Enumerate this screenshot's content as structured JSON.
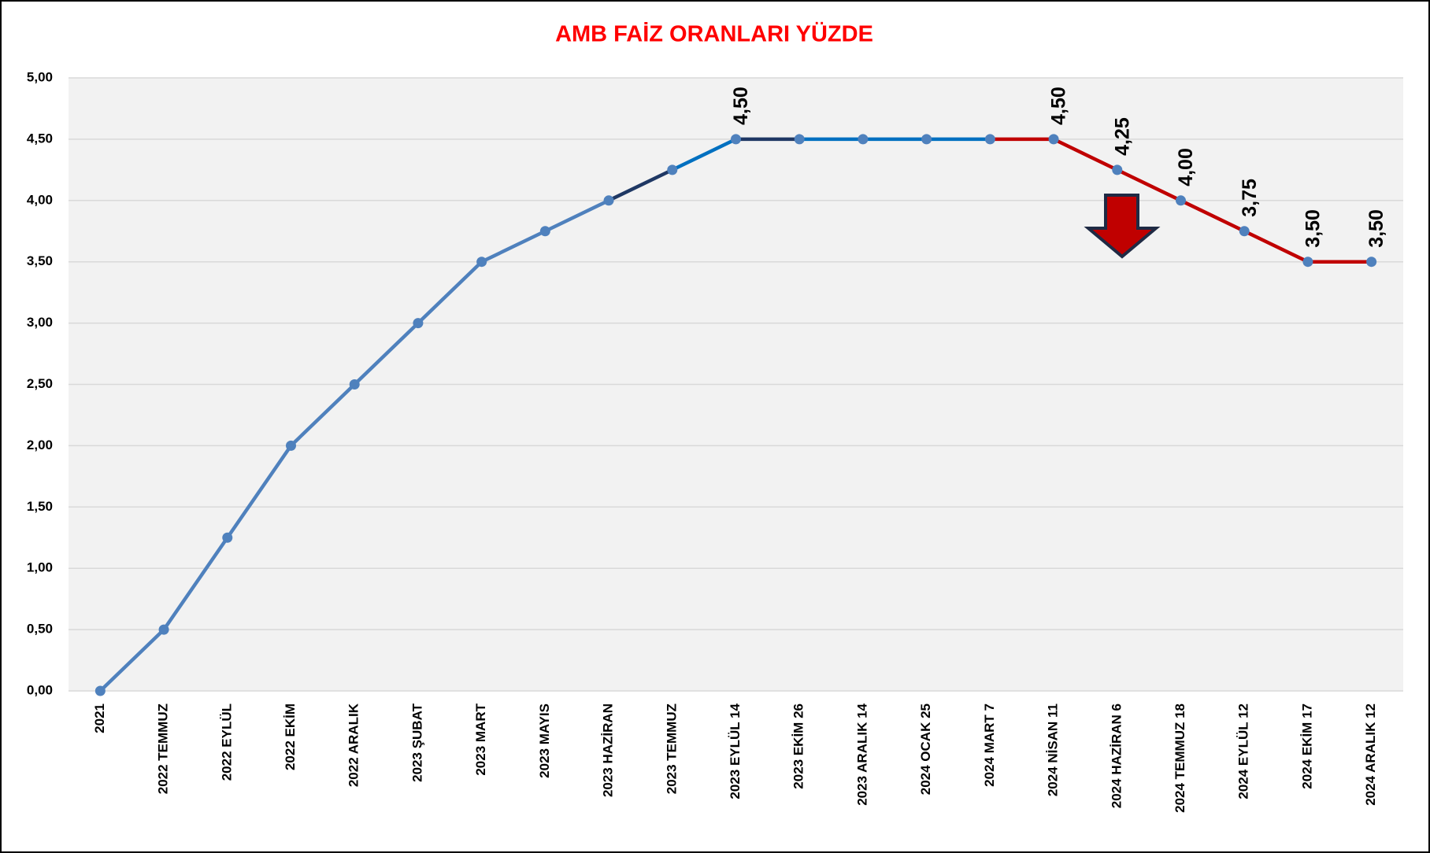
{
  "chart_data": {
    "type": "line",
    "title": "AMB FAİZ ORANLARI YÜZDE",
    "categories": [
      "2021",
      "2022 TEMMUZ",
      "2022 EYLÜL",
      "2022 EKİM",
      "2022 ARALIK",
      "2023 ŞUBAT",
      "2023 MART",
      "2023 MAYIS",
      "2023 HAZİRAN",
      "2023 TEMMUZ",
      "2023 EYLÜL 14",
      "2023 EKİM 26",
      "2023 ARALIK 14",
      "2024 OCAK 25",
      "2024 MART 7",
      "2024 NİSAN 11",
      "2024 HAZİRAN 6",
      "2024 TEMMUZ 18",
      "2024 EYLÜL 12",
      "2024 EKİM 17",
      "2024 ARALIK 12"
    ],
    "values": [
      0,
      0.5,
      1.25,
      2,
      2.5,
      3,
      3.5,
      3.75,
      4,
      4.25,
      4.5,
      4.5,
      4.5,
      4.5,
      4.5,
      4.5,
      4.25,
      4,
      3.75,
      3.5,
      3.5
    ],
    "value_labels": [
      null,
      null,
      null,
      null,
      null,
      null,
      null,
      null,
      null,
      null,
      "4,50",
      null,
      null,
      null,
      null,
      "4,50",
      "4,25",
      "4,00",
      "3,75",
      "3,50",
      "3,50"
    ],
    "color": "#4f81bd",
    "segment_colors": [
      "#4f81bd",
      "#4f81bd",
      "#4f81bd",
      "#4f81bd",
      "#4f81bd",
      "#4f81bd",
      "#4f81bd",
      "#4f81bd",
      "#1f3864",
      "#0070c0",
      "#1f3864",
      "#0070c0",
      "#0070c0",
      "#0070c0",
      "#c00000",
      "#c00000",
      "#c00000",
      "#c00000",
      "#c00000",
      "#c00000"
    ],
    "ylim": [
      0,
      5
    ],
    "yticks": [
      {
        "value": 0,
        "label": "0,00"
      },
      {
        "value": 0.5,
        "label": "0,50"
      },
      {
        "value": 1,
        "label": "1,00"
      },
      {
        "value": 1.5,
        "label": "1,50"
      },
      {
        "value": 2,
        "label": "2,00"
      },
      {
        "value": 2.5,
        "label": "2,50"
      },
      {
        "value": 3,
        "label": "3,00"
      },
      {
        "value": 3.5,
        "label": "3,50"
      },
      {
        "value": 4,
        "label": "4,00"
      },
      {
        "value": 4.5,
        "label": "4,50"
      },
      {
        "value": 5,
        "label": "5,00"
      }
    ],
    "grid": true
  }
}
